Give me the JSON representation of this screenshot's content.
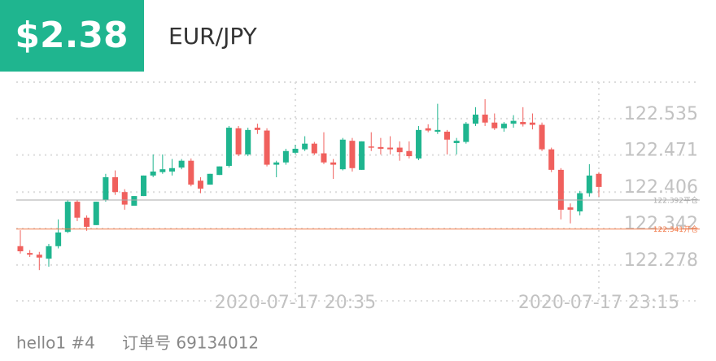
{
  "header": {
    "price": "$2.38",
    "symbol": "EUR/JPY"
  },
  "chart_data": {
    "type": "candlestick",
    "categories": [
      null,
      null,
      null,
      null,
      null,
      null,
      null,
      null,
      null,
      null,
      null,
      null,
      null,
      null,
      null,
      null,
      null,
      null,
      null,
      null,
      null,
      null,
      null,
      null,
      null,
      null,
      null,
      null,
      null,
      "2020-07-17 20:35",
      null,
      null,
      null,
      null,
      null,
      null,
      null,
      null,
      null,
      null,
      null,
      null,
      null,
      null,
      null,
      null,
      null,
      null,
      null,
      null,
      null,
      null,
      null,
      null,
      null,
      null,
      null,
      null,
      null,
      null,
      null,
      "2020-07-17 23:15"
    ],
    "open": [
      122.311,
      122.299,
      122.296,
      122.289,
      122.311,
      122.336,
      122.389,
      122.361,
      122.348,
      122.392,
      122.432,
      122.406,
      122.382,
      122.399,
      122.435,
      122.441,
      122.442,
      122.449,
      122.461,
      122.426,
      122.419,
      122.436,
      122.452,
      122.518,
      122.472,
      122.519,
      122.514,
      122.454,
      122.458,
      122.475,
      122.481,
      122.491,
      122.474,
      122.458,
      122.446,
      122.496,
      122.445,
      122.486,
      122.485,
      122.484,
      122.484,
      122.478,
      122.465,
      122.518,
      122.512,
      122.512,
      122.492,
      122.494,
      122.526,
      122.542,
      122.528,
      122.518,
      122.526,
      122.529,
      122.528,
      122.524,
      122.481,
      122.445,
      122.379,
      122.372,
      122.404,
      122.438
    ],
    "high": [
      122.339,
      122.304,
      122.301,
      122.315,
      122.358,
      122.392,
      122.392,
      122.365,
      122.389,
      122.438,
      122.444,
      122.411,
      122.399,
      122.435,
      122.472,
      122.472,
      122.464,
      122.464,
      122.465,
      122.432,
      122.438,
      122.451,
      122.522,
      122.522,
      122.519,
      122.526,
      122.518,
      122.461,
      122.482,
      122.489,
      122.504,
      122.494,
      122.511,
      122.464,
      122.501,
      122.501,
      122.495,
      122.511,
      122.501,
      122.504,
      122.495,
      122.495,
      122.522,
      122.525,
      122.561,
      122.515,
      122.501,
      122.529,
      122.555,
      122.569,
      122.544,
      122.529,
      122.541,
      122.555,
      122.544,
      122.528,
      122.484,
      122.448,
      122.386,
      122.408,
      122.455,
      122.441
    ],
    "low": [
      122.298,
      122.292,
      122.269,
      122.275,
      122.307,
      122.334,
      122.355,
      122.338,
      122.348,
      122.389,
      122.401,
      122.375,
      122.382,
      122.399,
      122.432,
      122.438,
      122.435,
      122.446,
      122.416,
      122.404,
      122.419,
      122.436,
      122.449,
      122.469,
      122.469,
      122.508,
      122.451,
      122.432,
      122.454,
      122.472,
      122.478,
      122.471,
      122.455,
      122.429,
      122.444,
      122.442,
      122.445,
      122.478,
      122.472,
      122.472,
      122.461,
      122.465,
      122.462,
      122.511,
      122.508,
      122.472,
      122.472,
      122.491,
      122.522,
      122.522,
      122.515,
      122.512,
      122.519,
      122.521,
      122.516,
      122.478,
      122.441,
      122.358,
      122.351,
      122.365,
      122.398,
      122.398
    ],
    "close": [
      122.302,
      122.296,
      122.291,
      122.311,
      122.335,
      122.389,
      122.361,
      122.345,
      122.389,
      122.432,
      122.406,
      122.384,
      122.399,
      122.435,
      122.442,
      122.446,
      122.448,
      122.461,
      122.419,
      122.412,
      122.438,
      122.451,
      122.519,
      122.472,
      122.515,
      122.515,
      122.454,
      122.458,
      122.478,
      122.482,
      122.491,
      122.474,
      122.458,
      122.454,
      122.498,
      122.448,
      122.495,
      122.484,
      122.482,
      122.481,
      122.476,
      122.469,
      122.515,
      122.514,
      122.515,
      122.498,
      122.496,
      122.526,
      122.542,
      122.528,
      122.518,
      122.526,
      122.531,
      122.525,
      122.524,
      122.481,
      122.445,
      122.375,
      122.375,
      122.404,
      122.435,
      122.415
    ],
    "up_color": "#1fb58f",
    "down_color": "#f0605d",
    "ylim": [
      122.215,
      122.599
    ],
    "yticks": [
      122.535,
      122.471,
      122.406,
      122.342,
      122.278
    ],
    "grid": true,
    "lines": [
      {
        "value": 122.392,
        "label": "122.392平仓",
        "color": "#aaaaaa"
      },
      {
        "value": 122.341,
        "label": "122.341开仓",
        "color": "#f27b4b"
      }
    ]
  },
  "footer": {
    "user": "hello1 #4",
    "order": "订单号 69134012"
  }
}
